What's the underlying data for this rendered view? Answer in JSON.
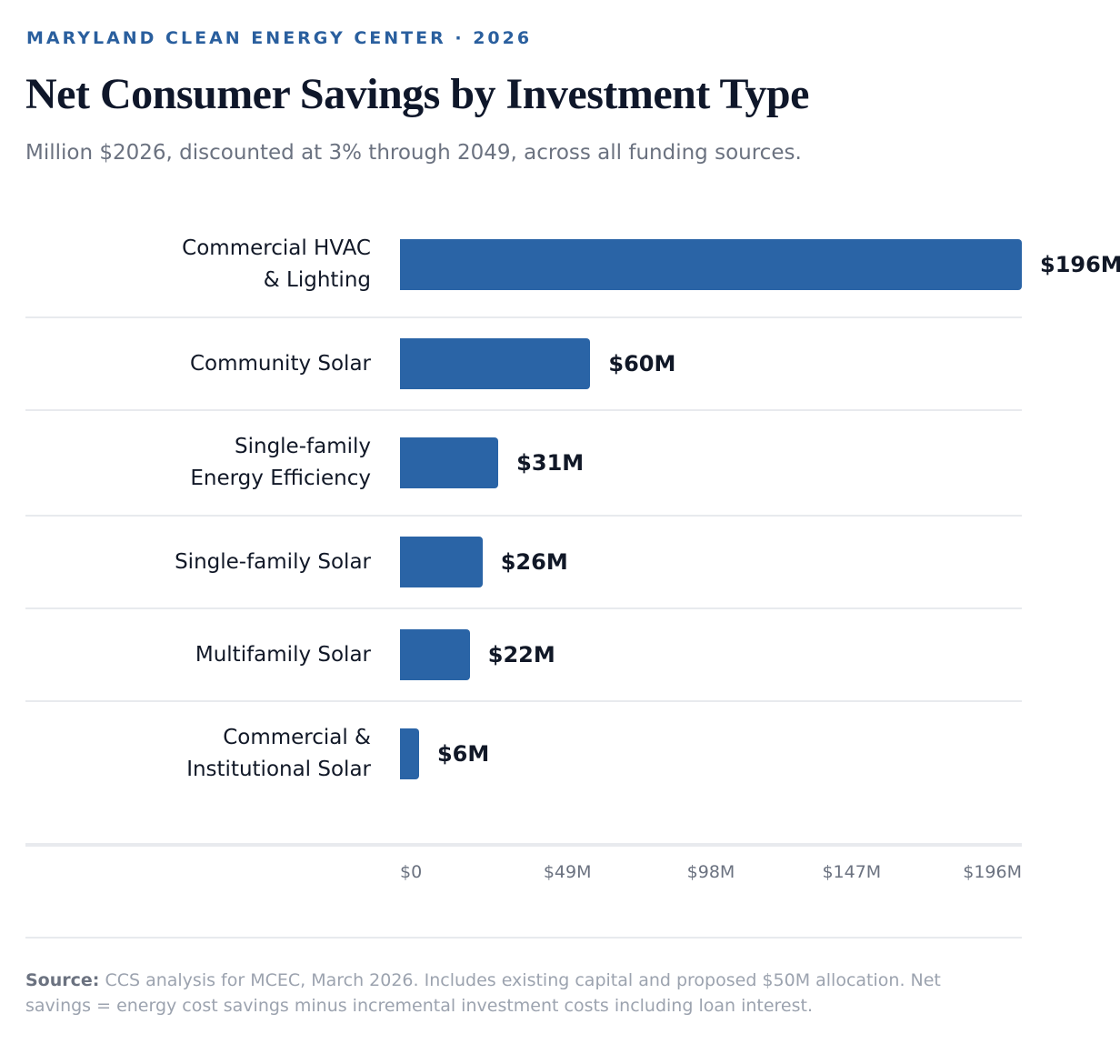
{
  "chart_data": {
    "type": "bar",
    "orientation": "horizontal",
    "kicker": "MARYLAND CLEAN ENERGY CENTER · 2026",
    "title": "Net Consumer Savings by Investment Type",
    "subtitle": "Million $2026, discounted at 3% through 2049, across all funding sources.",
    "categories": [
      "Commercial HVAC\n& Lighting",
      "Community Solar",
      "Single-family\nEnergy Efficiency",
      "Single-family Solar",
      "Multifamily Solar",
      "Commercial &\nInstitutional Solar"
    ],
    "values": [
      196,
      60,
      31,
      26,
      22,
      6
    ],
    "value_labels": [
      "$196M",
      "$60M",
      "$31M",
      "$26M",
      "$22M",
      "$6M"
    ],
    "color": "#2a64a6",
    "xlim": [
      0,
      196
    ],
    "xticks": [
      {
        "value": 0,
        "label": "$0"
      },
      {
        "value": 49,
        "label": "$49M"
      },
      {
        "value": 98,
        "label": "$98M"
      },
      {
        "value": 147,
        "label": "$147M"
      },
      {
        "value": 196,
        "label": "$196M"
      }
    ],
    "source_label": "Source:",
    "source": "CCS analysis for MCEC, March 2026. Includes existing capital and proposed $50M allocation. Net savings = energy cost savings minus incremental investment costs including loan interest."
  }
}
